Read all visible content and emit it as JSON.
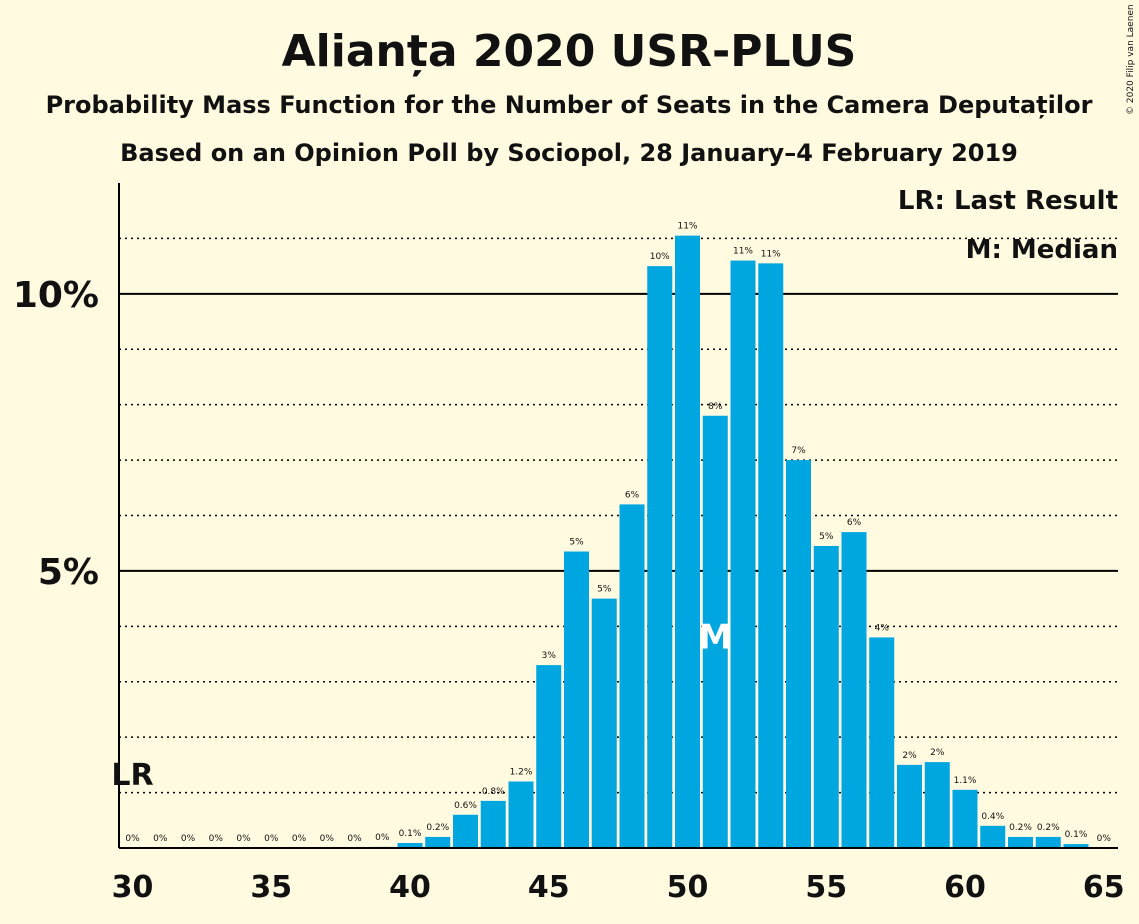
{
  "chart_data": {
    "type": "bar",
    "title": "Alianța 2020 USR-PLUS",
    "subtitle": "Probability Mass Function for the Number of Seats in the Camera Deputaților",
    "subtitle2": "Based on an Opinion Poll by Sociopol, 28 January–4 February 2019",
    "copyright": "© 2020 Filip van Laenen",
    "legend": [
      "LR: Last Result",
      "M: Median"
    ],
    "last_result_label": "LR",
    "last_result_seat": 30,
    "median_label": "M",
    "median_seat": 51,
    "x": [
      30,
      31,
      32,
      33,
      34,
      35,
      36,
      37,
      38,
      39,
      40,
      41,
      42,
      43,
      44,
      45,
      46,
      47,
      48,
      49,
      50,
      51,
      52,
      53,
      54,
      55,
      56,
      57,
      58,
      59,
      60,
      61,
      62,
      63,
      64,
      65
    ],
    "values": [
      0,
      0,
      0,
      0,
      0,
      0,
      0,
      0,
      0,
      0.02,
      0.09,
      0.2,
      0.6,
      0.85,
      1.2,
      3.3,
      5.35,
      4.5,
      6.2,
      10.5,
      11.05,
      7.8,
      10.6,
      10.55,
      7.0,
      5.45,
      5.7,
      3.8,
      1.5,
      1.55,
      1.05,
      0.4,
      0.2,
      0.2,
      0.07,
      0
    ],
    "labels": [
      "0%",
      "0%",
      "0%",
      "0%",
      "0%",
      "0%",
      "0%",
      "0%",
      "0%",
      "0%",
      "0.1%",
      "0.2%",
      "0.6%",
      "0.8%",
      "1.2%",
      "3%",
      "5%",
      "5%",
      "6%",
      "10%",
      "11%",
      "8%",
      "11%",
      "11%",
      "7%",
      "5%",
      "6%",
      "4%",
      "2%",
      "2%",
      "1.1%",
      "0.4%",
      "0.2%",
      "0.2%",
      "0.1%",
      "0%"
    ],
    "x_ticks": [
      "30",
      "35",
      "40",
      "45",
      "50",
      "55",
      "60",
      "65"
    ],
    "y_ticks": [
      "5%",
      "10%"
    ],
    "ylim": [
      0,
      12
    ],
    "grid": true,
    "legend_position": "top-right"
  }
}
